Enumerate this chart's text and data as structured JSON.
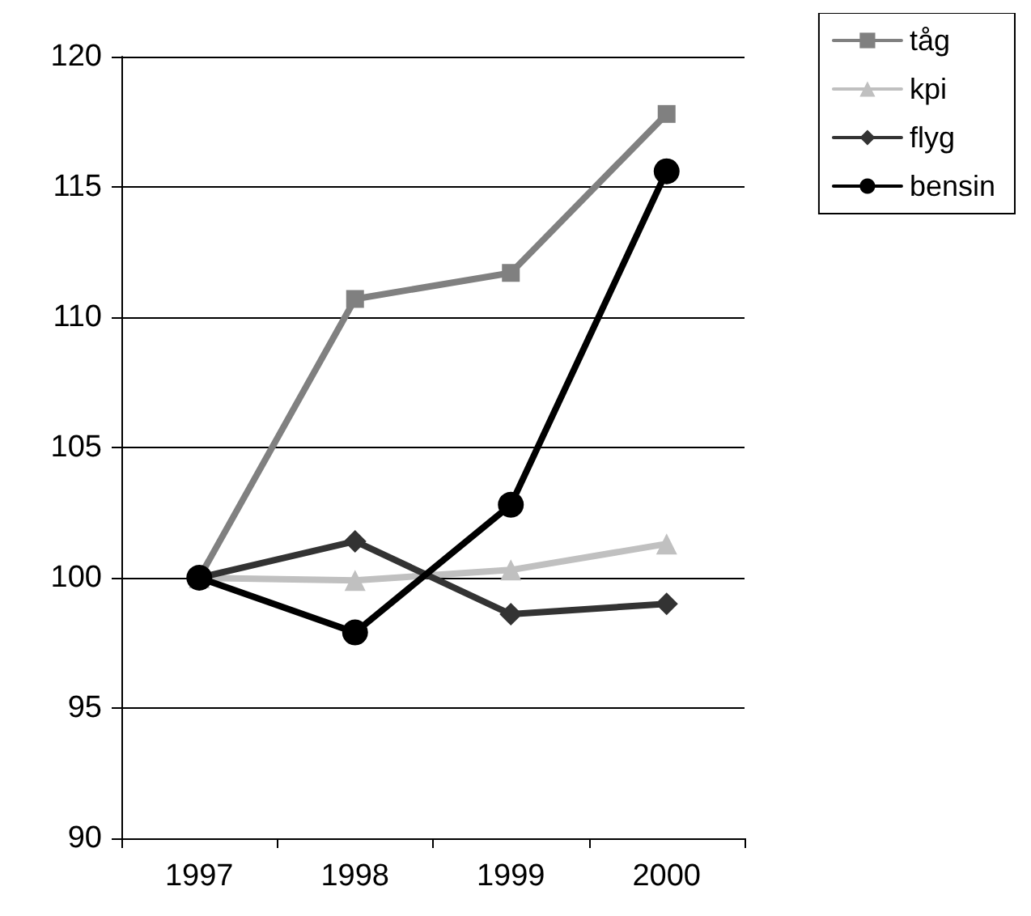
{
  "chart_data": {
    "type": "line",
    "categories": [
      "1997",
      "1998",
      "1999",
      "2000"
    ],
    "series": [
      {
        "name": "tåg",
        "color": "#808080",
        "marker": "square",
        "values": [
          100,
          110.7,
          111.7,
          117.8
        ]
      },
      {
        "name": "kpi",
        "color": "#c0c0c0",
        "marker": "triangle",
        "values": [
          100,
          99.9,
          100.3,
          101.3
        ]
      },
      {
        "name": "flyg",
        "color": "#333333",
        "marker": "diamond",
        "values": [
          100,
          101.4,
          98.6,
          99.0
        ]
      },
      {
        "name": "bensin",
        "color": "#000000",
        "marker": "circle",
        "values": [
          100,
          97.9,
          102.8,
          115.6
        ]
      }
    ],
    "ylim": [
      90,
      120
    ],
    "yticks": [
      90,
      95,
      100,
      105,
      110,
      115,
      120
    ],
    "grid": "y",
    "legend": "top right",
    "line_style": "solid"
  }
}
